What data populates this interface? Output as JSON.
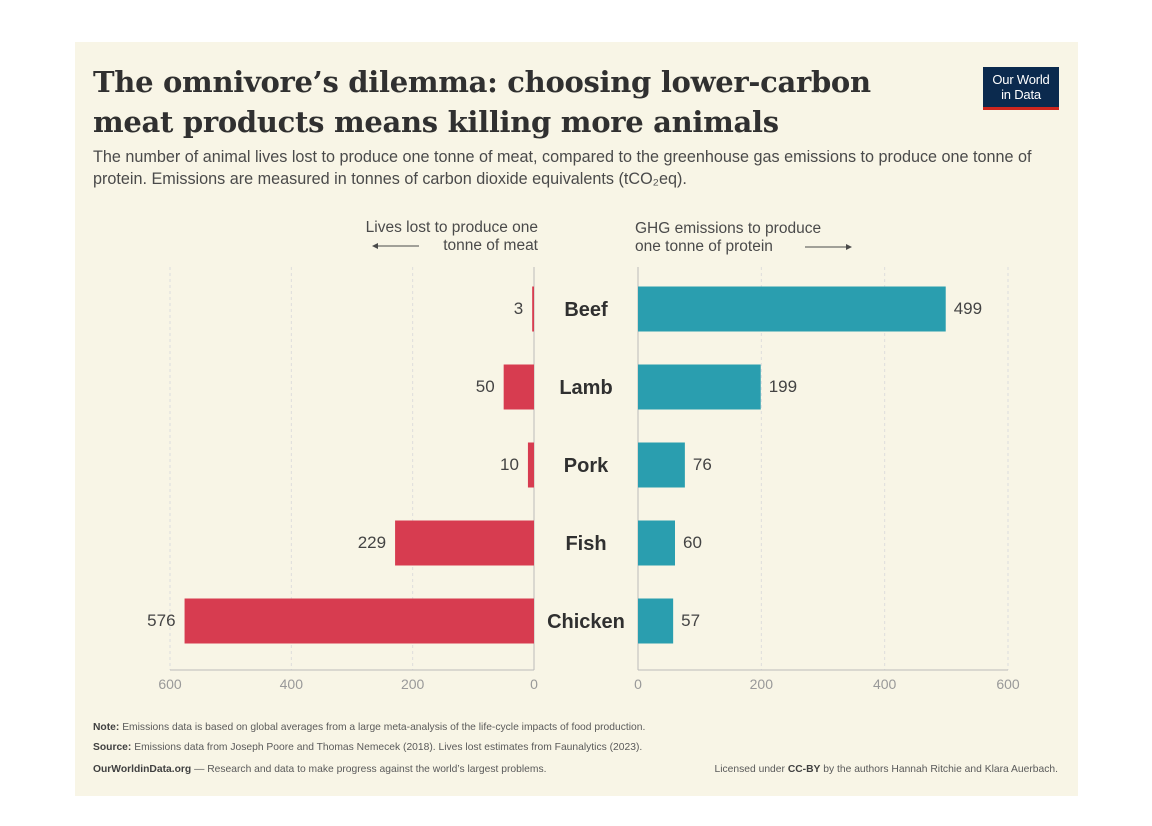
{
  "title": "The omnivore’s dilemma: choosing lower-carbon meat products means killing more animals",
  "subtitle": "The number of animal lives lost to produce one tonne of meat, compared to the greenhouse gas emissions to produce one tonne of protein. Emissions are measured in tonnes of carbon dioxide equivalents (tCO₂eq).",
  "logo": {
    "line1": "Our World",
    "line2": "in Data"
  },
  "footer": {
    "note_label": "Note:",
    "note_text": "Emissions data is based on global averages from a large meta-analysis of the life-cycle impacts of food production.",
    "source_label": "Source:",
    "source_text": "Emissions data from Joseph Poore and Thomas Nemecek (2018). Lives lost estimates from Faunalytics (2023).",
    "site": "OurWorldinData.org",
    "site_tagline": "— Research and data to make progress against the world’s largest problems.",
    "license_prefix": "Licensed under",
    "license_name": "CC-BY",
    "license_suffix": "by the authors Hannah Ritchie and Klara Auerbach."
  },
  "chart_data": {
    "type": "bar",
    "orientation": "horizontal-butterfly",
    "categories": [
      "Beef",
      "Lamb",
      "Pork",
      "Fish",
      "Chicken"
    ],
    "series": [
      {
        "name": "Lives lost to produce one tonne of meat",
        "label_lines": [
          "Lives lost to produce one",
          "tonne of meat"
        ],
        "direction": "left",
        "color": "#d73c50",
        "values": [
          3,
          50,
          10,
          229,
          576
        ],
        "xlim": [
          0,
          600
        ],
        "ticks": [
          600,
          400,
          200,
          0
        ]
      },
      {
        "name": "GHG emissions to produce one tonne of protein",
        "label_lines": [
          "GHG emissions to produce",
          "one tonne of protein"
        ],
        "direction": "right",
        "color": "#2a9eaf",
        "values": [
          499,
          199,
          76,
          60,
          57
        ],
        "xlim": [
          0,
          600
        ],
        "ticks": [
          0,
          200,
          400,
          600
        ]
      }
    ],
    "grid": true
  },
  "colors": {
    "background": "#f8f5e6",
    "text": "#303030",
    "grid": "#dddddd",
    "axis": "#bbbbbb",
    "ticks": "#999999"
  }
}
